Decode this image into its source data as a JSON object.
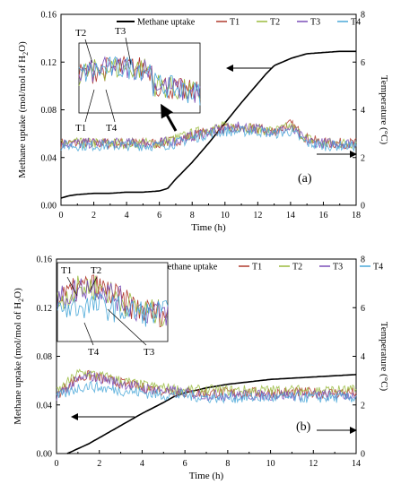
{
  "colors": {
    "methane": "#000000",
    "T1": "#b03a2e",
    "T2": "#9abb3e",
    "T3": "#7a4fb8",
    "T4": "#4aa8d8"
  },
  "chart_data": [
    {
      "type": "line",
      "panel_label": "(a)",
      "xlabel": "Time (h)",
      "ylabel_left": "Methane uptake (mol/mol of H",
      "ylabel_sub": "2",
      "ylabel_left_end": "O)",
      "ylabel_right": "Temperature (°C)",
      "xlim": [
        0,
        18
      ],
      "ylim_left": [
        0,
        0.16
      ],
      "ylim_right": [
        0,
        8
      ],
      "x_ticks": [
        0,
        2,
        4,
        6,
        8,
        10,
        12,
        14,
        16,
        18
      ],
      "y_ticks_left": [
        "0.00",
        "0.04",
        "0.08",
        "0.12",
        "0.16"
      ],
      "y_ticks_right": [
        "0",
        "2",
        "4",
        "6",
        "8"
      ],
      "legend": [
        "Methane uptake",
        "T1",
        "T2",
        "T3",
        "T4"
      ],
      "inset_labels": [
        "T2",
        "T3",
        "T1",
        "T4"
      ],
      "series": [
        {
          "name": "Methane uptake",
          "axis": "left",
          "x": [
            0,
            0.5,
            1,
            2,
            3,
            4,
            5,
            6,
            6.5,
            7,
            8,
            9,
            10,
            11,
            12,
            12.5,
            13,
            14,
            15,
            16,
            17,
            18
          ],
          "y": [
            0.006,
            0.008,
            0.009,
            0.01,
            0.01,
            0.011,
            0.011,
            0.012,
            0.014,
            0.022,
            0.036,
            0.052,
            0.069,
            0.086,
            0.102,
            0.11,
            0.117,
            0.123,
            0.127,
            0.128,
            0.129,
            0.129
          ]
        },
        {
          "name": "T1",
          "axis": "right",
          "x": [
            0,
            2,
            4,
            6,
            7,
            8,
            9,
            10,
            11,
            12,
            13,
            14,
            15,
            16,
            18
          ],
          "y": [
            2.6,
            2.6,
            2.6,
            2.6,
            2.7,
            2.9,
            3.1,
            3.2,
            3.2,
            3.2,
            3.1,
            3.4,
            2.8,
            2.6,
            2.6
          ]
        },
        {
          "name": "T2",
          "axis": "right",
          "x": [
            0,
            2,
            4,
            6,
            7,
            8,
            9,
            10,
            11,
            12,
            13,
            14,
            15,
            16,
            18
          ],
          "y": [
            2.6,
            2.6,
            2.6,
            2.6,
            2.8,
            3.0,
            3.2,
            3.3,
            3.3,
            3.2,
            3.1,
            3.3,
            2.8,
            2.6,
            2.6
          ]
        },
        {
          "name": "T3",
          "axis": "right",
          "x": [
            0,
            2,
            4,
            6,
            7,
            8,
            9,
            10,
            11,
            12,
            13,
            14,
            15,
            16,
            18
          ],
          "y": [
            2.6,
            2.6,
            2.6,
            2.6,
            2.7,
            2.9,
            3.1,
            3.2,
            3.3,
            3.2,
            3.1,
            3.2,
            2.7,
            2.6,
            2.6
          ]
        },
        {
          "name": "T4",
          "axis": "right",
          "x": [
            0,
            2,
            4,
            6,
            7,
            8,
            9,
            10,
            11,
            12,
            13,
            14,
            15,
            16,
            18
          ],
          "y": [
            2.5,
            2.5,
            2.5,
            2.5,
            2.6,
            2.8,
            3.0,
            3.1,
            3.1,
            3.1,
            3.0,
            3.1,
            2.6,
            2.5,
            2.5
          ]
        }
      ]
    },
    {
      "type": "line",
      "panel_label": "(b)",
      "xlabel": "Time (h)",
      "ylabel_left": "Methane uptake (mol/mol of H",
      "ylabel_sub": "2",
      "ylabel_left_end": "O)",
      "ylabel_right": "Temperature (°C)",
      "xlim": [
        0,
        14
      ],
      "ylim_left": [
        0,
        0.16
      ],
      "ylim_right": [
        0,
        8
      ],
      "x_ticks": [
        0,
        2,
        4,
        6,
        8,
        10,
        12,
        14
      ],
      "y_ticks_left": [
        "0.00",
        "0.04",
        "0.08",
        "0.12",
        "0.16"
      ],
      "y_ticks_right": [
        "0",
        "2",
        "4",
        "6",
        "8"
      ],
      "legend": [
        "Methane uptake",
        "T1",
        "T2",
        "T3",
        "T4"
      ],
      "inset_labels": [
        "T1",
        "T2",
        "T4",
        "T3"
      ],
      "series": [
        {
          "name": "Methane uptake",
          "axis": "left",
          "x": [
            0.5,
            1,
            1.5,
            2,
            3,
            4,
            5,
            5.5,
            6,
            7,
            8,
            9,
            10,
            11,
            12,
            13,
            14
          ],
          "y": [
            0.0,
            0.004,
            0.008,
            0.013,
            0.023,
            0.033,
            0.042,
            0.047,
            0.05,
            0.054,
            0.057,
            0.059,
            0.061,
            0.062,
            0.063,
            0.064,
            0.065
          ]
        },
        {
          "name": "T1",
          "axis": "right",
          "x": [
            0,
            0.5,
            1,
            1.5,
            2,
            3,
            4,
            5,
            6,
            7,
            8,
            10,
            12,
            14
          ],
          "y": [
            2.4,
            2.8,
            3.1,
            3.2,
            3.1,
            2.9,
            2.7,
            2.6,
            2.5,
            2.5,
            2.5,
            2.5,
            2.5,
            2.5
          ]
        },
        {
          "name": "T2",
          "axis": "right",
          "x": [
            0,
            0.5,
            1,
            1.5,
            2,
            3,
            4,
            5,
            6,
            7,
            8,
            10,
            12,
            14
          ],
          "y": [
            2.5,
            2.9,
            3.3,
            3.3,
            3.2,
            3.0,
            2.8,
            2.7,
            2.6,
            2.6,
            2.6,
            2.6,
            2.6,
            2.6
          ]
        },
        {
          "name": "T3",
          "axis": "right",
          "x": [
            0,
            0.5,
            1,
            1.5,
            2,
            3,
            4,
            5,
            6,
            7,
            8,
            10,
            12,
            14
          ],
          "y": [
            2.4,
            2.7,
            3.0,
            3.2,
            3.1,
            2.9,
            2.7,
            2.6,
            2.5,
            2.4,
            2.4,
            2.4,
            2.4,
            2.4
          ]
        },
        {
          "name": "T4",
          "axis": "right",
          "x": [
            0,
            0.5,
            1,
            1.5,
            2,
            3,
            4,
            5,
            6,
            7,
            8,
            10,
            12,
            14
          ],
          "y": [
            2.3,
            2.5,
            2.7,
            2.8,
            2.7,
            2.6,
            2.5,
            2.4,
            2.4,
            2.3,
            2.3,
            2.3,
            2.3,
            2.3
          ]
        }
      ]
    }
  ]
}
